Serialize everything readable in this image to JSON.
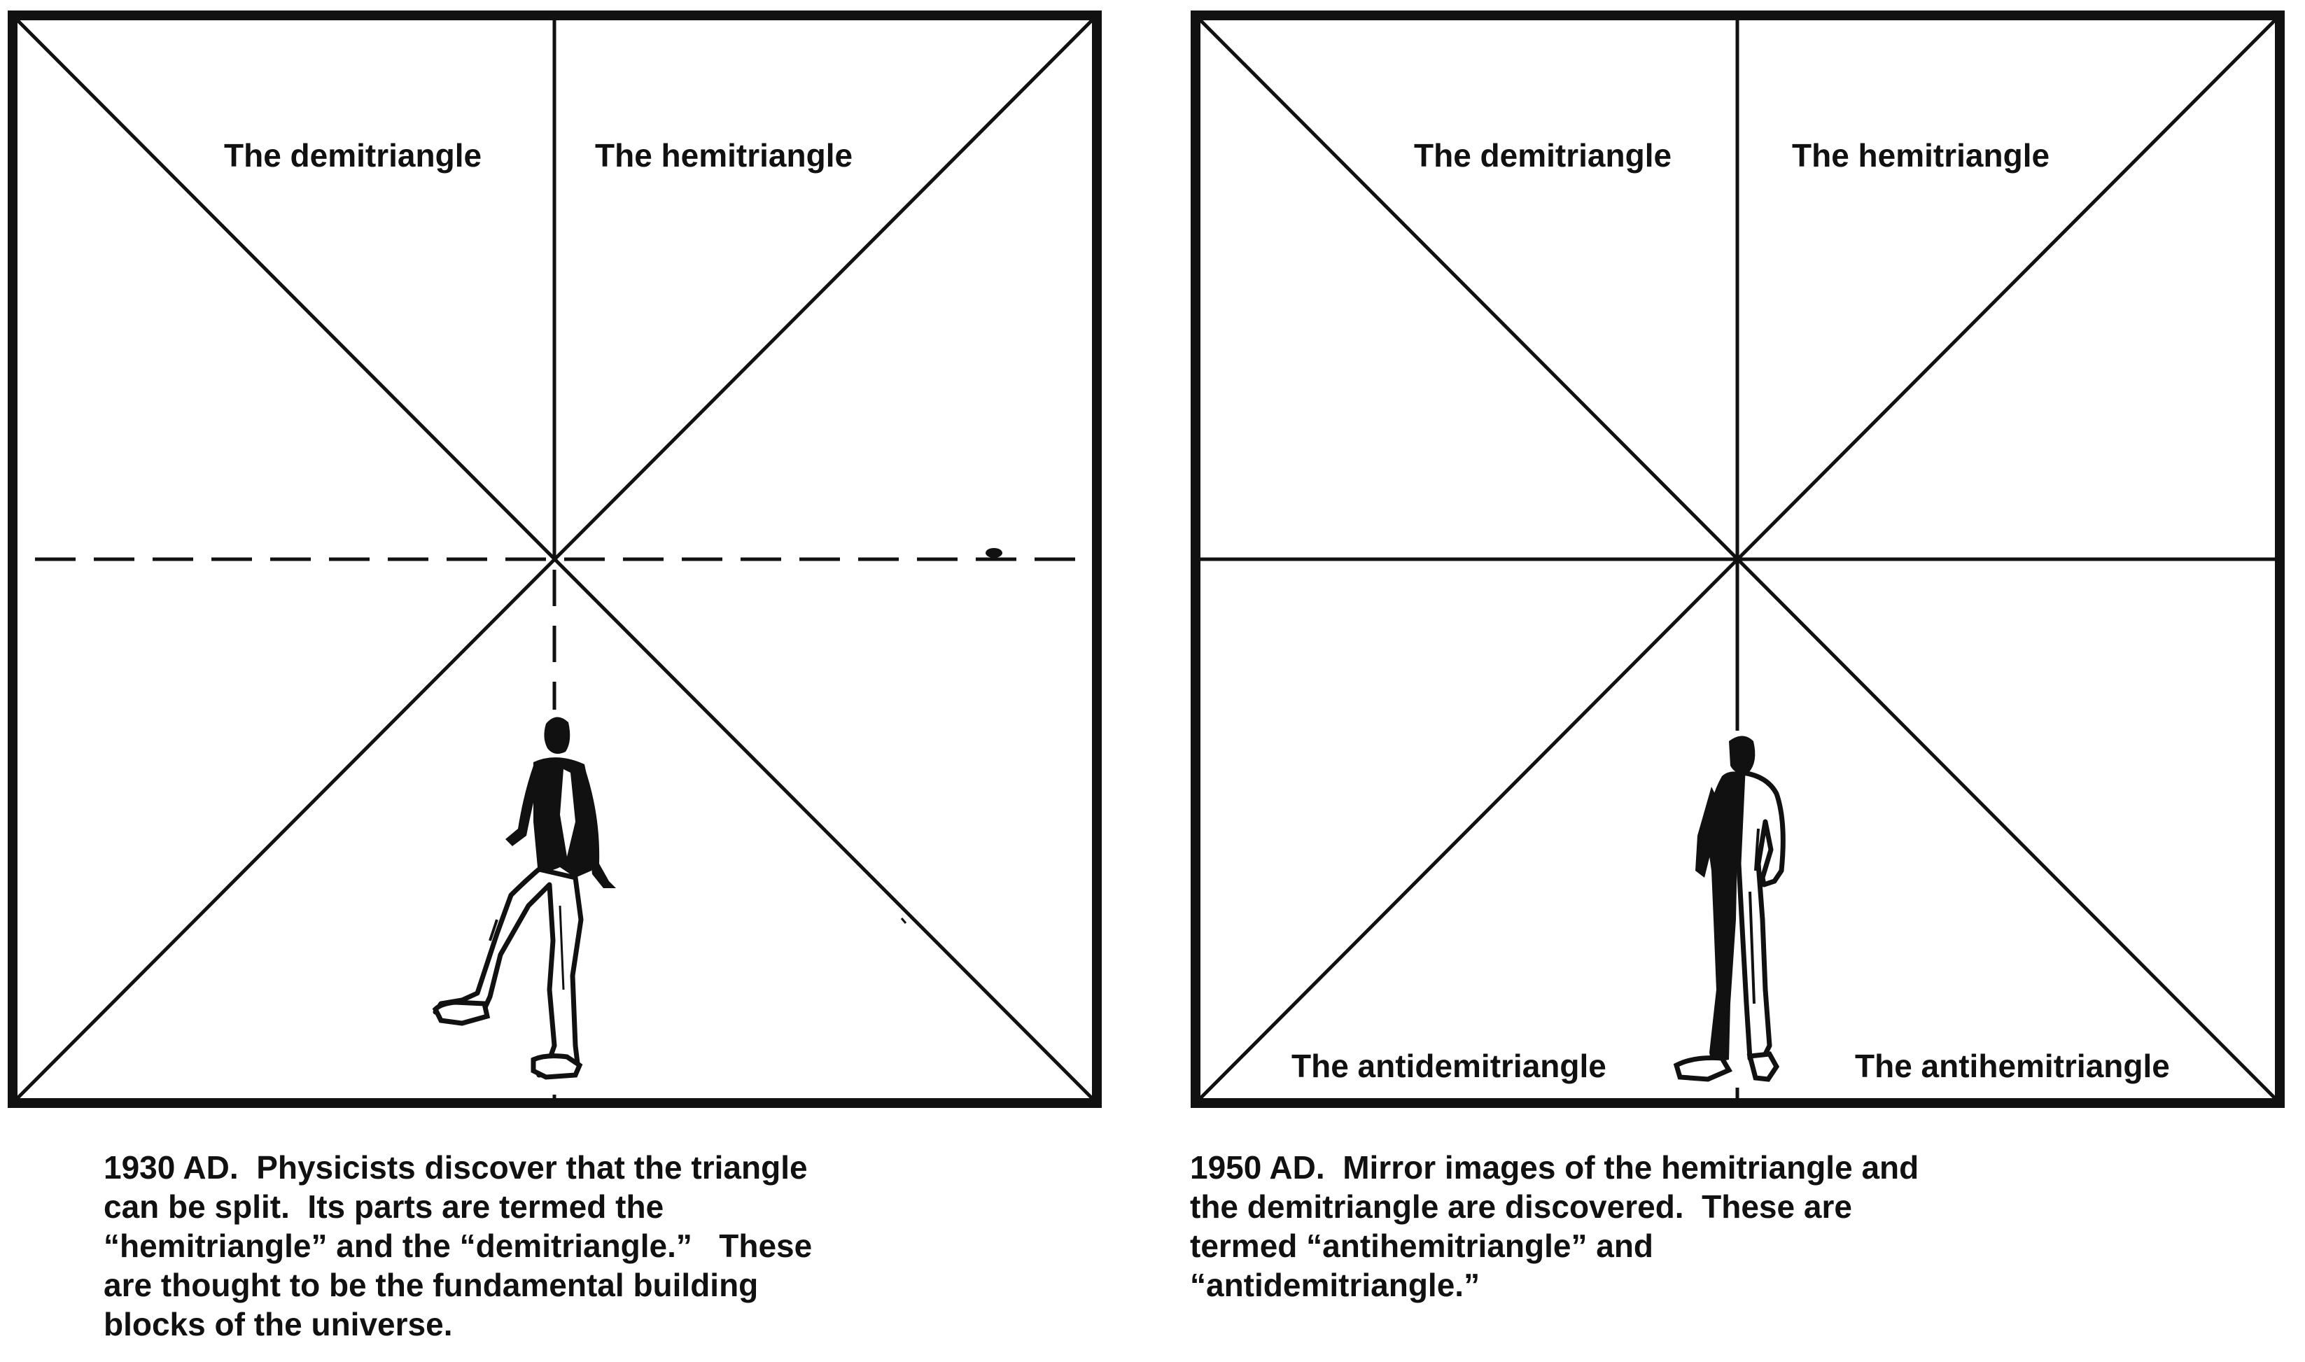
{
  "panels": [
    {
      "labels": {
        "top_left": "The demitriangle",
        "top_right": "The hemitriangle"
      },
      "caption": {
        "date": "1930 AD.",
        "lines": [
          "Physicists discover that the triangle",
          "can be split.  Its parts are termed the",
          "“hemitriangle” and the “demitriangle.”   These",
          "are thought to be the fundamental building",
          "blocks of the universe."
        ]
      },
      "figure_icon": "walking-man-illustration"
    },
    {
      "labels": {
        "top_left": "The demitriangle",
        "top_right": "The hemitriangle",
        "bottom_left": "The antidemitriangle",
        "bottom_right": "The antihemitriangle"
      },
      "caption": {
        "date": "1950 AD.",
        "lines": [
          "Mirror images of the hemitriangle and",
          "the demitriangle are discovered.  These are",
          "termed “antihemitriangle” and",
          "“antidemitriangle.”"
        ]
      },
      "figure_icon": "standing-man-illustration"
    }
  ],
  "colors": {
    "ink": "#111111",
    "paper": "#ffffff"
  }
}
